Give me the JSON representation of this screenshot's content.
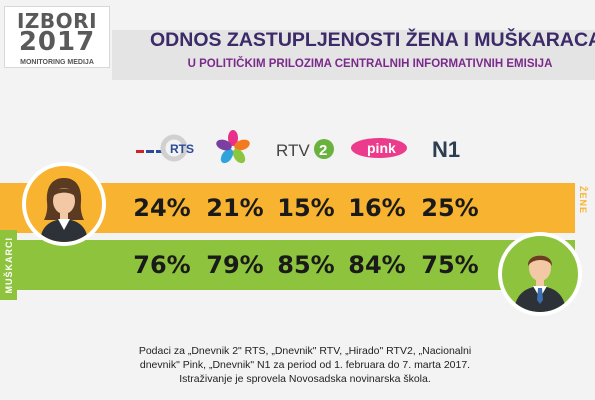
{
  "header": {
    "logo_title": "IZBORI",
    "logo_year": "2017",
    "logo_subtitle": "MONITORING MEDIJA",
    "title": "ODNOS ZASTUPLJENOSTI ŽENA I MUŠKARACA",
    "subtitle": "U POLITIČKIM PRILOZIMA CENTRALNIH INFORMATIVNIH EMISIJA"
  },
  "colors": {
    "women": "#f8b330",
    "men": "#8ec33d",
    "title": "#3d2a68",
    "subtitle": "#7a2a8a"
  },
  "chart_data": {
    "type": "table",
    "categories": [
      "RTS",
      "Pink",
      "RTV 2",
      "pink",
      "N1"
    ],
    "series": [
      {
        "name": "ŽENE",
        "values": [
          24,
          21,
          15,
          16,
          25
        ],
        "labels": [
          "24%",
          "21%",
          "15%",
          "16%",
          "25%"
        ]
      },
      {
        "name": "MUŠKARCI",
        "values": [
          76,
          79,
          85,
          84,
          75
        ],
        "labels": [
          "76%",
          "79%",
          "85%",
          "84%",
          "75%"
        ]
      }
    ]
  },
  "channels": [
    {
      "logo": "rts-logo",
      "text": "RTS"
    },
    {
      "logo": "pink-star-logo",
      "text": ""
    },
    {
      "logo": "rtv2-logo",
      "text": "RTV"
    },
    {
      "logo": "pink-logo",
      "text": "pink"
    },
    {
      "logo": "n1-logo",
      "text": "N1"
    }
  ],
  "note": {
    "line1": "Podaci za „Dnevnik 2\" RTS, „Dnevnik\" RTV, „Hirado\" RTV2, „Nacionalni",
    "line2": "dnevnik\" Pink, „Dnevnik\" N1 za period od 1.  februara do 7. marta 2017.",
    "line3": "Istraživanje je sprovela Novosadska novinarska škola."
  }
}
